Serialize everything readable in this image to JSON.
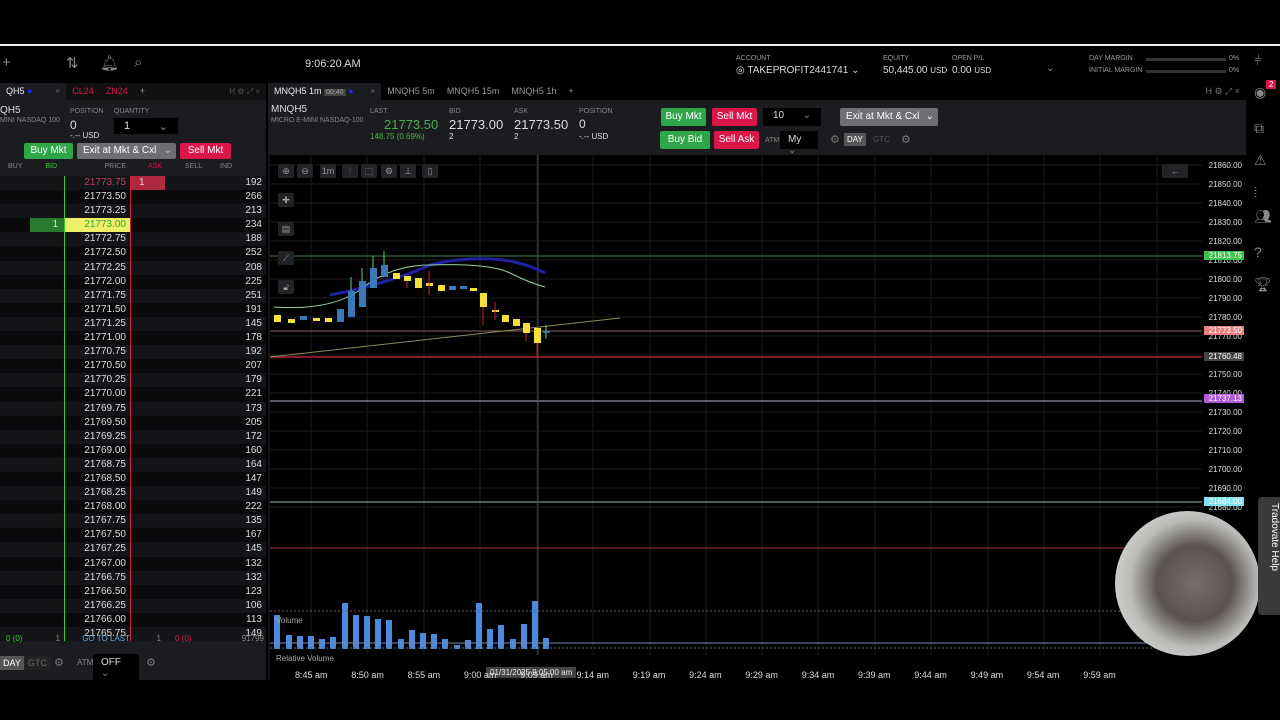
{
  "topbar": {
    "time": "9:06:20 AM",
    "icons": [
      "plus-icon",
      "transfer-icon",
      "bell-icon",
      "search-icon"
    ]
  },
  "account": {
    "account_label": "ACCOUNT",
    "account_value": "TAKEPROFIT2441741",
    "equity_label": "EQUITY",
    "equity_value": "50,445.00",
    "equity_unit": "USD",
    "openpl_label": "OPEN P/L",
    "openpl_value": "0.00",
    "openpl_unit": "USD",
    "day_margin_label": "DAY MARGIN",
    "day_margin_value": "0%",
    "initial_margin_label": "INITIAL MARGIN",
    "initial_margin_value": "0%"
  },
  "left_panel": {
    "tabs": [
      {
        "label": "QH5",
        "active": true
      },
      {
        "label": "CL24",
        "color": "#d9174b"
      },
      {
        "label": "ZN24",
        "color": "#d9174b"
      }
    ],
    "symbol": "QH5",
    "symbol_desc": "MINI NASDAQ 100",
    "position_label": "POSITION",
    "position_value": "0",
    "position_usd": "-.-- USD",
    "quantity_label": "QUANTITY",
    "quantity_value": "1",
    "buy_mkt": "Buy Mkt",
    "exit": "Exit at Mkt & Cxl",
    "sell_mkt": "Sell Mkt",
    "headers": {
      "buy": "BUY",
      "bid": "BID",
      "price": "PRICE",
      "ask": "ASK",
      "sell": "SELL",
      "ind": "IND"
    },
    "rows": [
      {
        "price": "21773.75",
        "bid": "",
        "ask": "1",
        "vol": "192"
      },
      {
        "price": "21773.50",
        "bid": "",
        "ask": "",
        "vol": "266"
      },
      {
        "price": "21773.25",
        "bid": "",
        "ask": "",
        "vol": "213"
      },
      {
        "price": "21773.00",
        "bid": "1",
        "ask": "",
        "vol": "234",
        "highlight": true
      },
      {
        "price": "21772.75",
        "bid": "",
        "ask": "",
        "vol": "188"
      },
      {
        "price": "21772.50",
        "bid": "",
        "ask": "",
        "vol": "252"
      },
      {
        "price": "21772.25",
        "bid": "",
        "ask": "",
        "vol": "208"
      },
      {
        "price": "21772.00",
        "bid": "",
        "ask": "",
        "vol": "225"
      },
      {
        "price": "21771.75",
        "bid": "",
        "ask": "",
        "vol": "251"
      },
      {
        "price": "21771.50",
        "bid": "",
        "ask": "",
        "vol": "191"
      },
      {
        "price": "21771.25",
        "bid": "",
        "ask": "",
        "vol": "145"
      },
      {
        "price": "21771.00",
        "bid": "",
        "ask": "",
        "vol": "178"
      },
      {
        "price": "21770.75",
        "bid": "",
        "ask": "",
        "vol": "192"
      },
      {
        "price": "21770.50",
        "bid": "",
        "ask": "",
        "vol": "207"
      },
      {
        "price": "21770.25",
        "bid": "",
        "ask": "",
        "vol": "179"
      },
      {
        "price": "21770.00",
        "bid": "",
        "ask": "",
        "vol": "221"
      },
      {
        "price": "21769.75",
        "bid": "",
        "ask": "",
        "vol": "173"
      },
      {
        "price": "21769.50",
        "bid": "",
        "ask": "",
        "vol": "205"
      },
      {
        "price": "21769.25",
        "bid": "",
        "ask": "",
        "vol": "172"
      },
      {
        "price": "21769.00",
        "bid": "",
        "ask": "",
        "vol": "160"
      },
      {
        "price": "21768.75",
        "bid": "",
        "ask": "",
        "vol": "164"
      },
      {
        "price": "21768.50",
        "bid": "",
        "ask": "",
        "vol": "147"
      },
      {
        "price": "21768.25",
        "bid": "",
        "ask": "",
        "vol": "149"
      },
      {
        "price": "21768.00",
        "bid": "",
        "ask": "",
        "vol": "222"
      },
      {
        "price": "21767.75",
        "bid": "",
        "ask": "",
        "vol": "135"
      },
      {
        "price": "21767.50",
        "bid": "",
        "ask": "",
        "vol": "167"
      },
      {
        "price": "21767.25",
        "bid": "",
        "ask": "",
        "vol": "145"
      },
      {
        "price": "21767.00",
        "bid": "",
        "ask": "",
        "vol": "132"
      },
      {
        "price": "21766.75",
        "bid": "",
        "ask": "",
        "vol": "132"
      },
      {
        "price": "21766.50",
        "bid": "",
        "ask": "",
        "vol": "123"
      },
      {
        "price": "21766.25",
        "bid": "",
        "ask": "",
        "vol": "106"
      },
      {
        "price": "21766.00",
        "bid": "",
        "ask": "",
        "vol": "113"
      },
      {
        "price": "21765.75",
        "bid": "",
        "ask": "",
        "vol": "149"
      }
    ],
    "footer": {
      "buy_total": "0 (0)",
      "bid_total": "1",
      "go_to_last": "GO TO LAST",
      "ask_total": "1",
      "sell_total": "0 (0)",
      "vol_total": "91799"
    },
    "bottom": {
      "day": "DAY",
      "gtc": "GTC",
      "atm_label": "ATM",
      "atm_value": "OFF"
    }
  },
  "chart_panel": {
    "tabs": [
      {
        "label": "MNQH5 1m",
        "badge": "00:40",
        "active": true
      },
      {
        "label": "MNQH5 5m"
      },
      {
        "label": "MNQH5 15m"
      },
      {
        "label": "MNQH5 1h"
      }
    ],
    "symbol": "MNQH5",
    "symbol_desc": "MICRO E-MINI NASDAQ-100",
    "last_label": "LAST",
    "last_value": "21773.50",
    "last_change": "148.75 (0.69%)",
    "bid_label": "BID",
    "bid_value": "21773.00",
    "bid_size": "2",
    "ask_label": "ASK",
    "ask_value": "21773.50",
    "ask_size": "2",
    "position_label": "POSITION",
    "position_value": "0",
    "position_usd": "-.-- USD",
    "buy_mkt": "Buy Mkt",
    "sell_mkt": "Sell Mkt",
    "qty": "10",
    "exit": "Exit at Mkt & Cxl",
    "buy_bid": "Buy Bid",
    "sell_ask": "Sell Ask",
    "atm_label": "ATM",
    "atm_value": "My",
    "day": "DAY",
    "gtc": "GTC",
    "timeframe": "1m",
    "volume_label": "Volume",
    "rel_volume_label": "Relative Volume",
    "crosshair_time": "01/31/2025 9:05:00 am"
  },
  "yaxis": {
    "ticks": [
      "21860.00",
      "21850.00",
      "21840.00",
      "21830.00",
      "21820.00",
      "21810.00",
      "21800.00",
      "21790.00",
      "21780.00",
      "21770.00",
      "21760.00",
      "21750.00",
      "21740.00",
      "21730.00",
      "21720.00",
      "21710.00",
      "21700.00",
      "21690.00",
      "21680.00"
    ],
    "tags": [
      {
        "label": "21813.75",
        "color": "#3cc24a"
      },
      {
        "label": "21773.50",
        "color": "#e88080"
      },
      {
        "label": "21760.48",
        "color": "#444"
      },
      {
        "label": "21737.13",
        "color": "#b35ad6"
      },
      {
        "label": "21684.00",
        "color": "#7fe3ef"
      }
    ]
  },
  "xaxis": {
    "labels": [
      "8:45 am",
      "8:50 am",
      "8:55 am",
      "9:00 am",
      "9:09 am",
      "9:14 am",
      "9:19 am",
      "9:24 am",
      "9:29 am",
      "9:34 am",
      "9:39 am",
      "9:44 am",
      "9:49 am",
      "9:54 am",
      "9:59 am"
    ]
  },
  "help": {
    "label": "Tradovate Help"
  },
  "rail": {
    "notification_count": "2"
  }
}
